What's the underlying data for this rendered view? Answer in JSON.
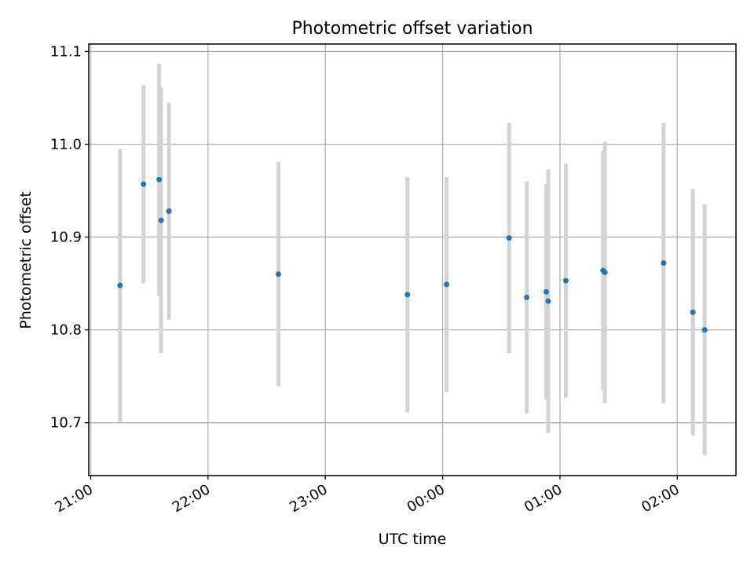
{
  "chart_data": {
    "type": "scatter",
    "title": "Photometric offset variation",
    "xlabel": "UTC time",
    "ylabel": "Photometric offset",
    "x_axis": {
      "kind": "time",
      "range": [
        "20:59",
        "02:30"
      ],
      "ticks": [
        "21:00",
        "22:00",
        "23:00",
        "00:00",
        "01:00",
        "02:00"
      ]
    },
    "y_axis": {
      "range": [
        10.643,
        11.108
      ],
      "ticks": [
        "10.7",
        "10.8",
        "10.9",
        "11.0",
        "11.1"
      ]
    },
    "grid": true,
    "colors": {
      "point": "#1f77b4",
      "errorbar": "#d3d3d3",
      "grid": "#b0b0b0"
    },
    "points": [
      {
        "x": "21:15",
        "y": 10.848,
        "err": 0.147
      },
      {
        "x": "21:27",
        "y": 10.957,
        "err": 0.107
      },
      {
        "x": "21:35",
        "y": 10.962,
        "err": 0.125
      },
      {
        "x": "21:36",
        "y": 10.918,
        "err": 0.143
      },
      {
        "x": "21:40",
        "y": 10.928,
        "err": 0.117
      },
      {
        "x": "22:36",
        "y": 10.86,
        "err": 0.121
      },
      {
        "x": "23:42",
        "y": 10.838,
        "err": 0.127
      },
      {
        "x": "00:02",
        "y": 10.849,
        "err": 0.116
      },
      {
        "x": "00:34",
        "y": 10.899,
        "err": 0.124
      },
      {
        "x": "00:43",
        "y": 10.835,
        "err": 0.125
      },
      {
        "x": "00:53",
        "y": 10.841,
        "err": 0.116
      },
      {
        "x": "00:54",
        "y": 10.831,
        "err": 0.142
      },
      {
        "x": "01:03",
        "y": 10.853,
        "err": 0.126
      },
      {
        "x": "01:22",
        "y": 10.864,
        "err": 0.129
      },
      {
        "x": "01:23",
        "y": 10.862,
        "err": 0.141
      },
      {
        "x": "01:53",
        "y": 10.872,
        "err": 0.151
      },
      {
        "x": "02:08",
        "y": 10.819,
        "err": 0.133
      },
      {
        "x": "02:14",
        "y": 10.8,
        "err": 0.135
      }
    ]
  }
}
